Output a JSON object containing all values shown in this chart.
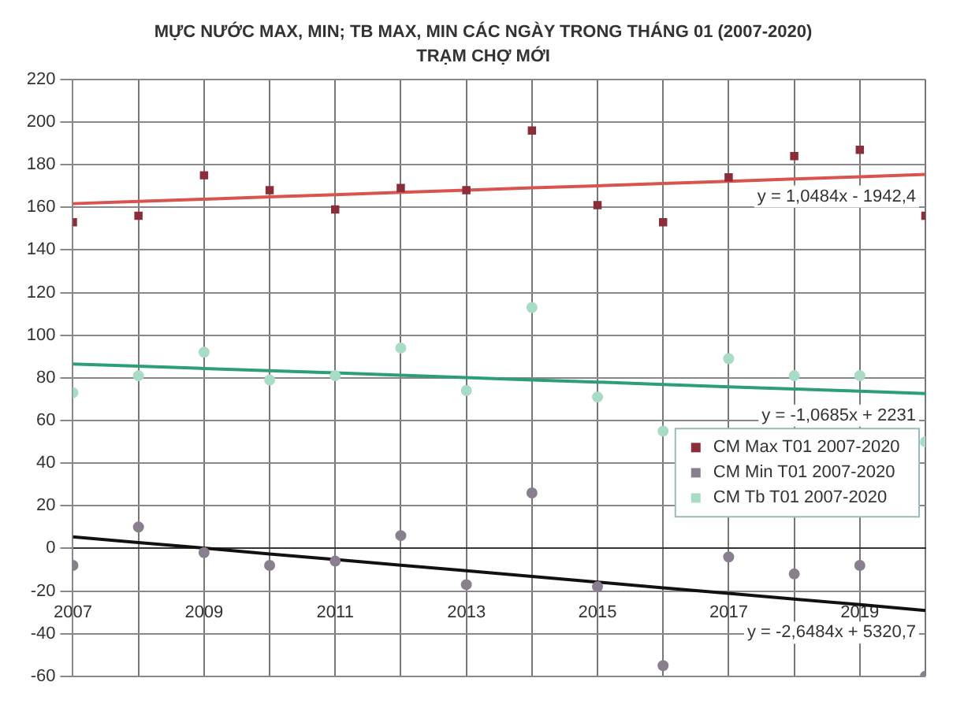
{
  "chart_data": {
    "type": "scatter",
    "title": "MỰC NƯỚC MAX, MIN; TB MAX, MIN CÁC NGÀY TRONG THÁNG 01 (2007-2020)",
    "subtitle": "TRẠM CHỢ MỚI",
    "x": [
      2007,
      2008,
      2009,
      2010,
      2011,
      2012,
      2013,
      2014,
      2015,
      2016,
      2017,
      2018,
      2019,
      2020
    ],
    "series": [
      {
        "name": "CM Max T01 2007-2020",
        "color": "#8b2e3a",
        "marker": "square",
        "values": [
          153,
          156,
          175,
          168,
          159,
          169,
          168,
          196,
          161,
          153,
          174,
          184,
          187,
          156
        ]
      },
      {
        "name": "CM Min T01 2007-2020",
        "color": "#8a7f8f",
        "marker": "circle",
        "values": [
          -8,
          10,
          -2,
          -8,
          -6,
          6,
          -17,
          26,
          -18,
          -55,
          -4,
          -12,
          -8,
          -60
        ]
      },
      {
        "name": "CM Tb T01 2007-2020",
        "color": "#a9dcc4",
        "marker": "circle",
        "values": [
          73,
          81,
          92,
          79,
          81,
          94,
          74,
          113,
          71,
          55,
          89,
          81,
          81,
          50
        ]
      },
      {
        "type": "line",
        "color": "#d9534f",
        "values": [
          161.7,
          162.8,
          163.8,
          164.9,
          165.9,
          167.0,
          168.0,
          169.1,
          170.1,
          171.2,
          172.2,
          173.3,
          174.3,
          175.4
        ]
      },
      {
        "type": "line",
        "color": "#2e9e78",
        "values": [
          86.5,
          85.5,
          84.4,
          83.3,
          82.3,
          81.2,
          80.1,
          79.0,
          78.0,
          76.9,
          75.8,
          74.8,
          73.7,
          72.6
        ]
      },
      {
        "type": "line",
        "color": "#111111",
        "values": [
          5.4,
          2.7,
          0.1,
          -2.6,
          -5.2,
          -7.9,
          -10.5,
          -13.2,
          -15.8,
          -18.5,
          -21.1,
          -23.8,
          -26.4,
          -29.1
        ]
      }
    ],
    "annotations": [
      "y = 1,0484x - 1942,4",
      "y = -1,0685x + 2231",
      "y = -2,6484x + 5320,7"
    ],
    "xlim": [
      2007,
      2020
    ],
    "xticks": [
      2007,
      {
        "value": 2008,
        "label": null
      },
      2009,
      {
        "value": 2010,
        "label": null
      },
      2011,
      {
        "value": 2012,
        "label": null
      },
      2013,
      {
        "value": 2014,
        "label": null
      },
      2015,
      {
        "value": 2016,
        "label": null
      },
      2017,
      {
        "value": 2018,
        "label": null
      },
      2019,
      {
        "value": 2020,
        "label": null
      }
    ],
    "ylim": [
      -60,
      220
    ],
    "yticks": [
      -60,
      -40,
      -20,
      0,
      20,
      40,
      60,
      80,
      100,
      120,
      140,
      160,
      180,
      200,
      220
    ],
    "grid": true,
    "legend": "bottom right"
  }
}
